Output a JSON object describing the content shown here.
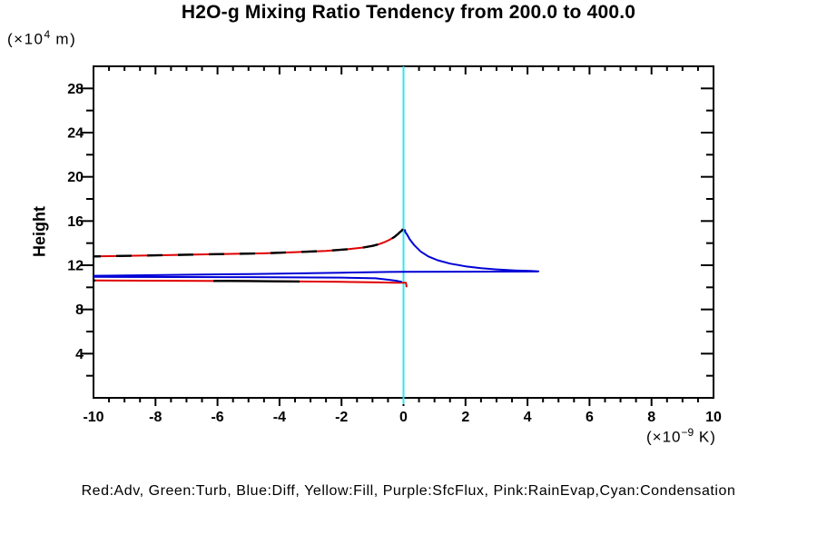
{
  "title": "H2O-g Mixing Ratio Tendency from 200.0 to 400.0",
  "y_axis": {
    "label": "Height",
    "unit_prefix": "(×10",
    "unit_sup": "4",
    "unit_suffix": " m)"
  },
  "x_axis": {
    "unit_prefix": "(×10",
    "unit_sup": "−9",
    "unit_suffix": " K)"
  },
  "legend": "Red:Adv, Green:Turb, Blue:Diff, Yellow:Fill, Purple:SfcFlux, Pink:RainEvap,Cyan:Condensation",
  "chart_data": {
    "type": "line",
    "title": "H2O-g Mixing Ratio Tendency from 200.0 to 400.0",
    "xlabel": "(×10−9 K)",
    "ylabel": "Height (×104 m)",
    "xlim": [
      -10,
      10
    ],
    "ylim": [
      0,
      30
    ],
    "grid": false,
    "background": "#ffffff",
    "axis_color": "#000000",
    "zero_line_x": 0,
    "x_ticks": {
      "major": [
        -10,
        -8,
        -6,
        -4,
        -2,
        0,
        2,
        4,
        6,
        8,
        10
      ],
      "minor_step": 0.5
    },
    "y_ticks": {
      "major": [
        4,
        8,
        12,
        16,
        20,
        24,
        28
      ],
      "minor_step": 2
    },
    "legend_note": "Red:Adv, Green:Turb, Blue:Diff, Yellow:Fill, Purple:SfcFlux, Pink:RainEvap,Cyan:Condensation",
    "series": [
      {
        "name": "Condensation",
        "color": "#2ee9ef",
        "style": "vline",
        "width": 2,
        "x": 0
      },
      {
        "name": "Adv",
        "color": "#e00000",
        "style": "solid",
        "width": 2,
        "segments": [
          {
            "points": [
              [
                -10,
                12.8
              ],
              [
                -8,
                12.9
              ],
              [
                -6,
                13.0
              ],
              [
                -4.5,
                13.08
              ],
              [
                -3.5,
                13.18
              ],
              [
                -2.5,
                13.3
              ],
              [
                -1.8,
                13.45
              ],
              [
                -1.3,
                13.6
              ],
              [
                -1.0,
                13.75
              ],
              [
                -0.8,
                13.9
              ],
              [
                -0.6,
                14.1
              ],
              [
                -0.45,
                14.3
              ],
              [
                -0.3,
                14.55
              ],
              [
                -0.2,
                14.78
              ],
              [
                -0.12,
                14.98
              ],
              [
                -0.06,
                15.12
              ],
              [
                -0.02,
                15.28
              ]
            ]
          },
          {
            "points": [
              [
                -10,
                10.62
              ],
              [
                -5,
                10.57
              ],
              [
                -2,
                10.5
              ],
              [
                -0.8,
                10.45
              ],
              [
                -0.3,
                10.42
              ],
              [
                0.08,
                10.42
              ],
              [
                0.1,
                10.0
              ]
            ]
          }
        ]
      },
      {
        "name": "TotalBlackDashed",
        "color": "#000000",
        "style": "dashed",
        "width": 2.4,
        "segments": [
          {
            "points": [
              [
                -10,
                12.8
              ],
              [
                -8,
                12.9
              ],
              [
                -6,
                13.0
              ],
              [
                -4.5,
                13.08
              ],
              [
                -3.5,
                13.18
              ],
              [
                -2.5,
                13.3
              ],
              [
                -1.8,
                13.45
              ],
              [
                -1.3,
                13.6
              ],
              [
                -1.0,
                13.75
              ],
              [
                -0.8,
                13.9
              ],
              [
                -0.6,
                14.1
              ],
              [
                -0.45,
                14.3
              ],
              [
                -0.3,
                14.55
              ],
              [
                -0.2,
                14.78
              ],
              [
                -0.12,
                14.98
              ],
              [
                -0.06,
                15.12
              ],
              [
                -0.02,
                15.28
              ]
            ],
            "dash": "17 17",
            "dashoffset": -25
          },
          {
            "points": [
              [
                -10,
                10.62
              ],
              [
                -5,
                10.57
              ],
              [
                -2,
                10.5
              ],
              [
                -0.8,
                10.45
              ],
              [
                -0.3,
                10.42
              ],
              [
                0.08,
                10.42
              ]
            ],
            "dash": "95 130",
            "dashoffset": -132
          }
        ]
      },
      {
        "name": "Diff",
        "color": "#0000d6",
        "style": "solid",
        "width": 2,
        "segments": [
          {
            "points": [
              [
                -10,
                11.05
              ],
              [
                -8,
                11.1
              ],
              [
                -5,
                11.2
              ],
              [
                -2,
                11.33
              ],
              [
                -0.5,
                11.39
              ],
              [
                0,
                11.41
              ],
              [
                2,
                11.42
              ],
              [
                4.3,
                11.43
              ],
              [
                4.35,
                11.45
              ],
              [
                4.1,
                11.48
              ],
              [
                3.6,
                11.53
              ],
              [
                3.0,
                11.62
              ],
              [
                2.5,
                11.73
              ],
              [
                2.0,
                11.9
              ],
              [
                1.5,
                12.15
              ],
              [
                1.1,
                12.45
              ],
              [
                0.8,
                12.8
              ],
              [
                0.55,
                13.25
              ],
              [
                0.35,
                13.8
              ],
              [
                0.2,
                14.35
              ],
              [
                0.12,
                14.75
              ],
              [
                0.06,
                15.0
              ],
              [
                0.04,
                15.25
              ]
            ]
          },
          {
            "points": [
              [
                -10,
                10.95
              ],
              [
                -5,
                10.92
              ],
              [
                -2,
                10.88
              ],
              [
                -0.9,
                10.82
              ],
              [
                -0.45,
                10.68
              ],
              [
                -0.2,
                10.58
              ],
              [
                -0.05,
                10.5
              ]
            ]
          }
        ]
      }
    ]
  },
  "plot": {
    "tick_label_font_px": 16
  }
}
